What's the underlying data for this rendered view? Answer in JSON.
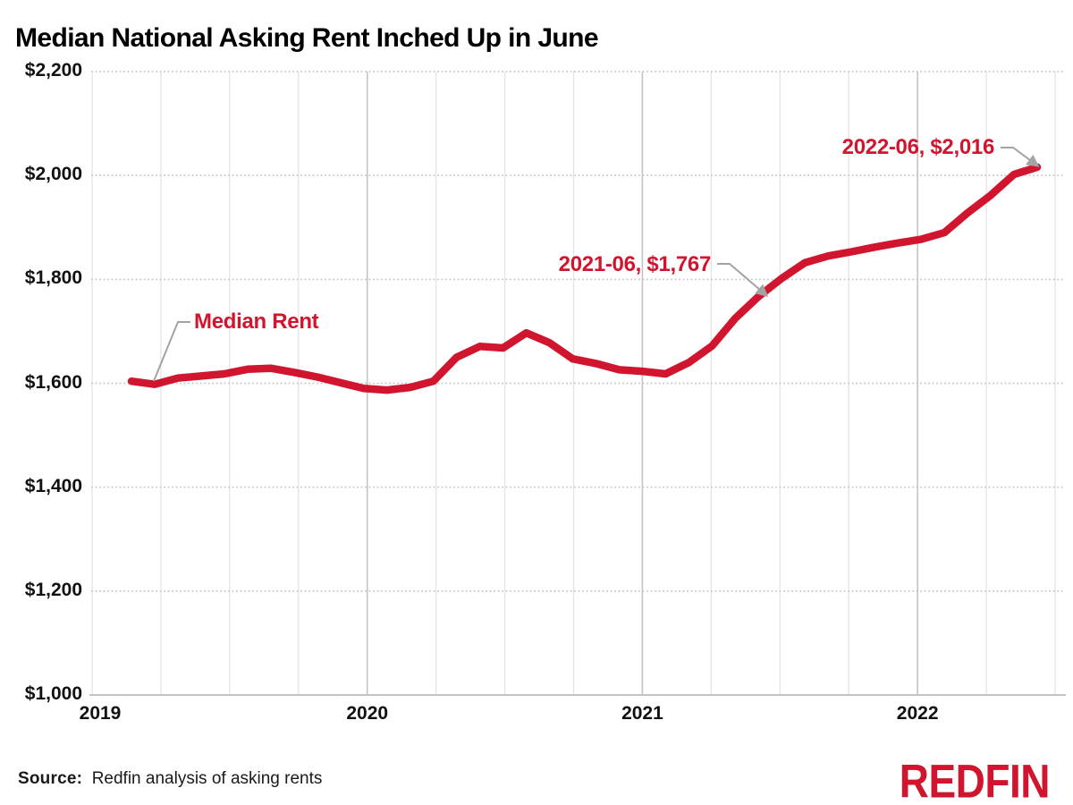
{
  "title": "Median National Asking Rent Inched Up in June",
  "source": {
    "label": "Source:",
    "text": "Redfin analysis of asking rents"
  },
  "logo": {
    "text": "REDFIN"
  },
  "colors": {
    "line": "#d1152e",
    "annotation_text": "#d1152e",
    "logo_red": "#d1152e",
    "callout_gray": "#a3a3a3",
    "grid_dotted": "#c9c9c9",
    "grid_vertical": "#e4e4e4",
    "grid_vertical_year": "#c4c4c4",
    "axis_line": "#c4c4c4",
    "text_dark": "#111111"
  },
  "chart_data": {
    "type": "line",
    "title": "Median National Asking Rent Inched Up in June",
    "series_name": "Median Rent",
    "x": [
      "2019-03",
      "2019-04",
      "2019-05",
      "2019-06",
      "2019-07",
      "2019-08",
      "2019-09",
      "2019-10",
      "2019-11",
      "2019-12",
      "2020-01",
      "2020-02",
      "2020-03",
      "2020-04",
      "2020-05",
      "2020-06",
      "2020-07",
      "2020-08",
      "2020-09",
      "2020-10",
      "2020-11",
      "2020-12",
      "2021-01",
      "2021-02",
      "2021-03",
      "2021-04",
      "2021-05",
      "2021-06",
      "2021-07",
      "2021-08",
      "2021-09",
      "2021-10",
      "2021-11",
      "2021-12",
      "2022-01",
      "2022-02",
      "2022-03",
      "2022-04",
      "2022-05",
      "2022-06"
    ],
    "values": [
      1604,
      1598,
      1610,
      1614,
      1618,
      1627,
      1629,
      1621,
      1612,
      1601,
      1590,
      1587,
      1592,
      1604,
      1650,
      1671,
      1668,
      1697,
      1678,
      1647,
      1638,
      1626,
      1623,
      1618,
      1640,
      1672,
      1725,
      1767,
      1802,
      1832,
      1845,
      1853,
      1862,
      1870,
      1877,
      1890,
      1928,
      1962,
      2002,
      2016
    ],
    "ylim": [
      1000,
      2200
    ],
    "ytick_values": [
      2200,
      2000,
      1800,
      1600,
      1400,
      1200,
      1000
    ],
    "ytick_labels": [
      "$2,200",
      "$2,000",
      "$1,800",
      "$1,600",
      "$1,400",
      "$1,200",
      "$1,000"
    ],
    "xtick_labels": [
      "2019",
      "2020",
      "2021",
      "2022"
    ],
    "grid": {
      "horizontal": "dotted",
      "vertical": "quarterly solid, darker at year starts"
    },
    "annotations": [
      {
        "text": "Median Rent",
        "target_x": "2019-03"
      },
      {
        "text": "2021-06, $1,767",
        "target_x": "2021-06",
        "value": 1767
      },
      {
        "text": "2022-06, $2,016",
        "target_x": "2022-06",
        "value": 2016
      }
    ]
  }
}
